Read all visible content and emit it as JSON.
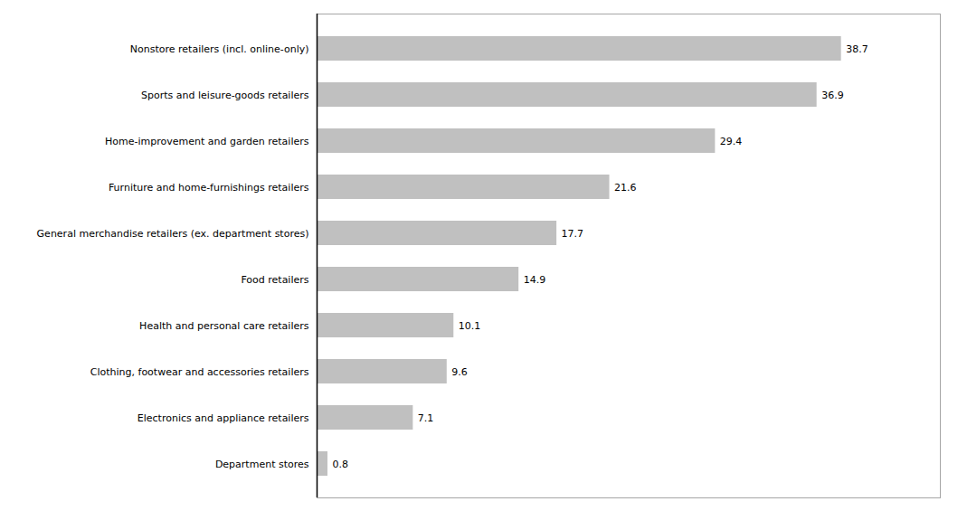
{
  "chart_data": {
    "type": "bar",
    "orientation": "horizontal",
    "categories": [
      "Department stores",
      "Electronics and appliance retailers",
      "Clothing, footwear and accessories retailers",
      "Health and personal care retailers",
      "Food retailers",
      "General merchandise retailers (ex. department stores)",
      "Furniture and home-furnishings retailers",
      "Home-improvement and garden retailers",
      "Sports and leisure-goods retailers",
      "Nonstore retailers (incl. online-only)"
    ],
    "values": [
      0.8,
      7.1,
      9.6,
      10.1,
      14.9,
      17.7,
      21.6,
      29.4,
      36.9,
      38.7
    ],
    "color": "#c0c0c0",
    "xlim": [
      0,
      46
    ],
    "data_labels": true,
    "tick_labels": "y",
    "grid": false
  }
}
